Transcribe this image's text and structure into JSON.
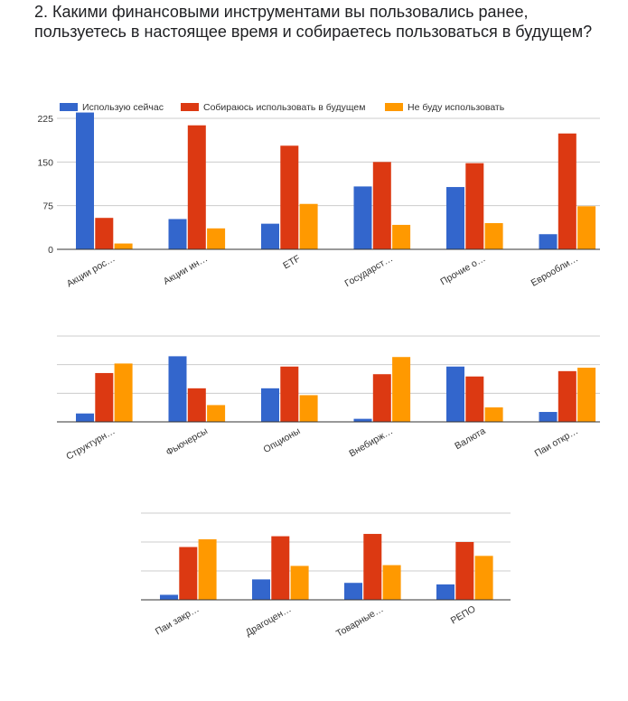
{
  "question": {
    "title": "2. Какими финансовыми инструментами вы пользовались ранее, пользуетесь в настоящее время и собираетесь пользоваться в будущем?"
  },
  "colors": {
    "series": [
      "#3366cc",
      "#dc3912",
      "#ff9900"
    ],
    "grid": "#cccccc",
    "axis": "#333333"
  },
  "chart_data": {
    "type": "bar",
    "ylim": [
      0,
      225
    ],
    "yticks": [
      "0",
      "75",
      "150",
      "225"
    ],
    "legend_position": "top",
    "grid": true,
    "series": [
      {
        "name": "Использую сейчас"
      },
      {
        "name": "Собираюсь использовать в будущем"
      },
      {
        "name": "Не буду использовать"
      }
    ],
    "panels": [
      {
        "categories": [
          "Акции рос…",
          "Акции ин…",
          "ETF",
          "Государст…",
          "Прочие о…",
          "Еврообли…"
        ],
        "values": [
          [
            235,
            52,
            44,
            108,
            107,
            26
          ],
          [
            54,
            213,
            178,
            150,
            148,
            199
          ],
          [
            10,
            36,
            78,
            42,
            45,
            74
          ]
        ]
      },
      {
        "categories": [
          "Структурн…",
          "Фьючерсы",
          "Опционы",
          "Внебирж…",
          "Валюта",
          "Паи откр…"
        ],
        "values": [
          [
            22,
            172,
            88,
            8,
            145,
            26
          ],
          [
            128,
            88,
            145,
            125,
            119,
            133
          ],
          [
            153,
            44,
            70,
            170,
            38,
            142
          ]
        ]
      },
      {
        "categories": [
          "Паи закр…",
          "Драгоцен…",
          "Товарные…",
          "РЕПО"
        ],
        "values": [
          [
            13,
            53,
            44,
            40
          ],
          [
            137,
            165,
            171,
            150
          ],
          [
            157,
            88,
            90,
            114
          ]
        ]
      }
    ]
  }
}
